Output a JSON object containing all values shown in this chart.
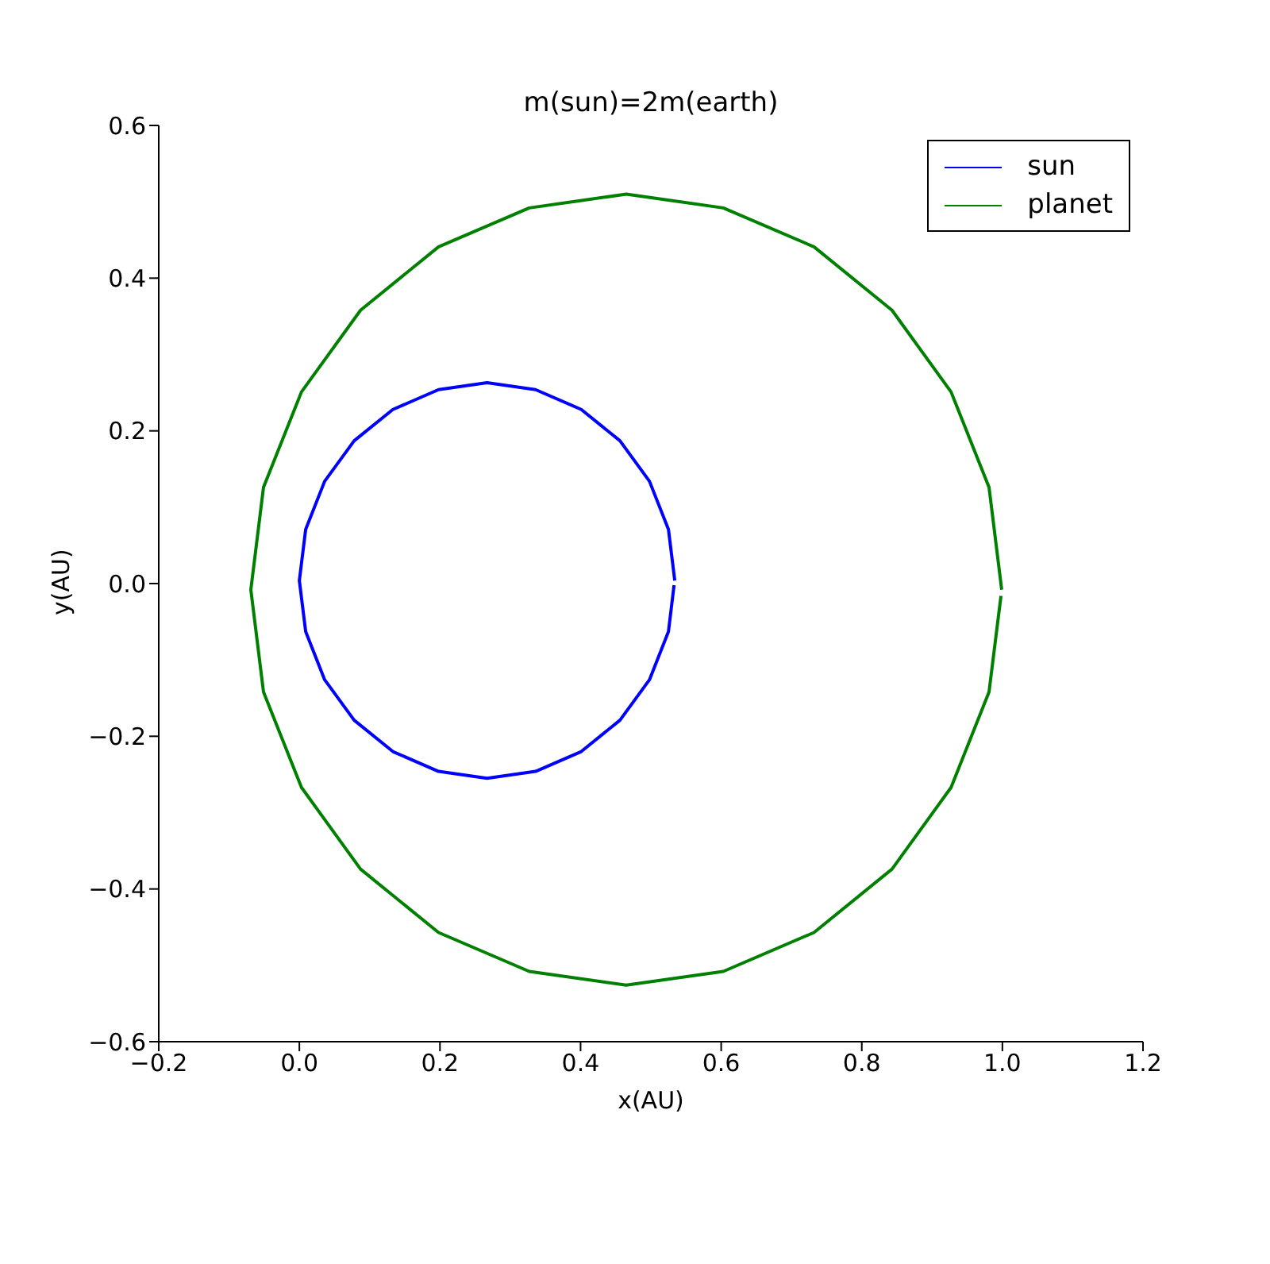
{
  "chart_data": {
    "type": "line",
    "title": "m(sun)=2m(earth)",
    "xlabel": "x(AU)",
    "ylabel": "y(AU)",
    "xlim": [
      -0.2,
      1.2
    ],
    "xticks": [
      {
        "value": -0.2,
        "label": "−0.2"
      },
      {
        "value": 0,
        "label": "0.0"
      },
      0.2,
      0.4,
      0.6,
      0.8,
      {
        "value": 1,
        "label": "1.0"
      },
      1.2
    ],
    "ylim": [
      -0.6,
      0.6
    ],
    "yticks": [
      {
        "value": -0.6,
        "label": "−0.6"
      },
      {
        "value": -0.4,
        "label": "−0.4"
      },
      {
        "value": -0.2,
        "label": "−0.2"
      },
      {
        "value": 0,
        "label": "0.0"
      },
      0.2,
      0.4,
      0.6
    ],
    "grid": false,
    "legend": "top right",
    "marker": "none",
    "line_style": "solid",
    "series": [
      {
        "name": "sun",
        "color": "#0000ff",
        "x": [
          0.534,
          0.525,
          0.498,
          0.456,
          0.401,
          0.336,
          0.267,
          0.198,
          0.133,
          0.078,
          0.036,
          0.009,
          0.0,
          0.009,
          0.036,
          0.078,
          0.133,
          0.198,
          0.267,
          0.336,
          0.401,
          0.456,
          0.498,
          0.525,
          0.533
        ],
        "values": [
          0.004,
          0.071,
          0.134,
          0.187,
          0.228,
          0.254,
          0.263,
          0.254,
          0.228,
          0.187,
          0.134,
          0.071,
          0.004,
          -0.063,
          -0.126,
          -0.179,
          -0.22,
          -0.246,
          -0.255,
          -0.246,
          -0.22,
          -0.179,
          -0.126,
          -0.063,
          -0.002
        ]
      },
      {
        "name": "planet",
        "color": "#008000",
        "x": [
          0.999,
          0.981,
          0.927,
          0.843,
          0.732,
          0.603,
          0.465,
          0.327,
          0.198,
          0.087,
          0.003,
          -0.051,
          -0.069,
          -0.051,
          0.003,
          0.087,
          0.198,
          0.327,
          0.465,
          0.603,
          0.732,
          0.843,
          0.927,
          0.981,
          0.998
        ],
        "values": [
          -0.008,
          0.126,
          0.251,
          0.358,
          0.441,
          0.492,
          0.51,
          0.492,
          0.441,
          0.358,
          0.251,
          0.126,
          -0.008,
          -0.142,
          -0.267,
          -0.374,
          -0.457,
          -0.508,
          -0.526,
          -0.508,
          -0.457,
          -0.374,
          -0.267,
          -0.142,
          -0.016
        ]
      }
    ]
  }
}
